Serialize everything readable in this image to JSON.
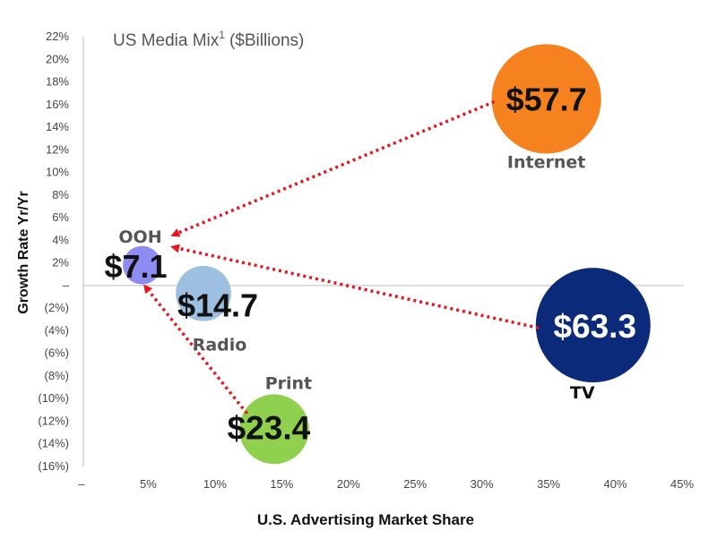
{
  "chart_data": {
    "type": "bubble",
    "title": "US Media Mix",
    "title_superscript": "1",
    "title_suffix": "($Billions)",
    "xlabel": "U.S. Advertising Market Share",
    "ylabel": "Growth Rate Yr/Yr",
    "xlim": [
      0,
      45
    ],
    "ylim": [
      -16,
      22
    ],
    "x_ticks": [
      {
        "value": 0,
        "label": "–"
      },
      {
        "value": 5,
        "label": "5%"
      },
      {
        "value": 10,
        "label": "10%"
      },
      {
        "value": 15,
        "label": "15%"
      },
      {
        "value": 20,
        "label": "20%"
      },
      {
        "value": 25,
        "label": "25%"
      },
      {
        "value": 30,
        "label": "30%"
      },
      {
        "value": 35,
        "label": "35%"
      },
      {
        "value": 40,
        "label": "40%"
      },
      {
        "value": 45,
        "label": "45%"
      }
    ],
    "y_ticks": [
      {
        "value": 22,
        "label": "22%"
      },
      {
        "value": 20,
        "label": "20%"
      },
      {
        "value": 18,
        "label": "18%"
      },
      {
        "value": 16,
        "label": "16%"
      },
      {
        "value": 14,
        "label": "14%"
      },
      {
        "value": 12,
        "label": "12%"
      },
      {
        "value": 10,
        "label": "10%"
      },
      {
        "value": 8,
        "label": "8%"
      },
      {
        "value": 6,
        "label": "6%"
      },
      {
        "value": 4,
        "label": "4%"
      },
      {
        "value": 2,
        "label": "2%"
      },
      {
        "value": 0,
        "label": "–"
      },
      {
        "value": -2,
        "label": "(2%)"
      },
      {
        "value": -4,
        "label": "(4%)"
      },
      {
        "value": -6,
        "label": "(6%)"
      },
      {
        "value": -8,
        "label": "(8%)"
      },
      {
        "value": -10,
        "label": "(10%)"
      },
      {
        "value": -12,
        "label": "(12%)"
      },
      {
        "value": -14,
        "label": "(14%)"
      },
      {
        "value": -16,
        "label": "(16%)"
      }
    ],
    "bubbles": [
      {
        "name": "Internet",
        "x": 34.7,
        "y": 16.5,
        "spend": 57.7,
        "value_label": "$57.7",
        "color": "#f5821f",
        "value_color": "#111111",
        "name_color": "#555555"
      },
      {
        "name": "TV",
        "x": 38.2,
        "y": -3.5,
        "spend": 63.3,
        "value_label": "$63.3",
        "color": "#0b2a7a",
        "value_color": "#ffffff",
        "name_color": "#111111"
      },
      {
        "name": "Radio",
        "x": 9.0,
        "y": -0.7,
        "spend": 14.7,
        "value_label": "$14.7",
        "color": "#9dbfe0",
        "value_color": "#111111",
        "name_color": "#555555"
      },
      {
        "name": "OOH",
        "x": 4.4,
        "y": 1.8,
        "spend": 7.1,
        "value_label": "$7.1",
        "color": "#8d8cf2",
        "value_color": "#111111",
        "name_color": "#555555"
      },
      {
        "name": "Print",
        "x": 14.3,
        "y": -12.7,
        "spend": 23.4,
        "value_label": "$23.4",
        "color": "#8fd14f",
        "value_color": "#111111",
        "name_color": "#555555"
      }
    ],
    "arrows": [
      {
        "from": "Internet",
        "to": "OOH"
      },
      {
        "from": "TV",
        "to": "OOH"
      },
      {
        "from": "Print",
        "to": "OOH"
      }
    ],
    "arrow_color": "#e8161b",
    "grid": false,
    "zero_line": true
  }
}
